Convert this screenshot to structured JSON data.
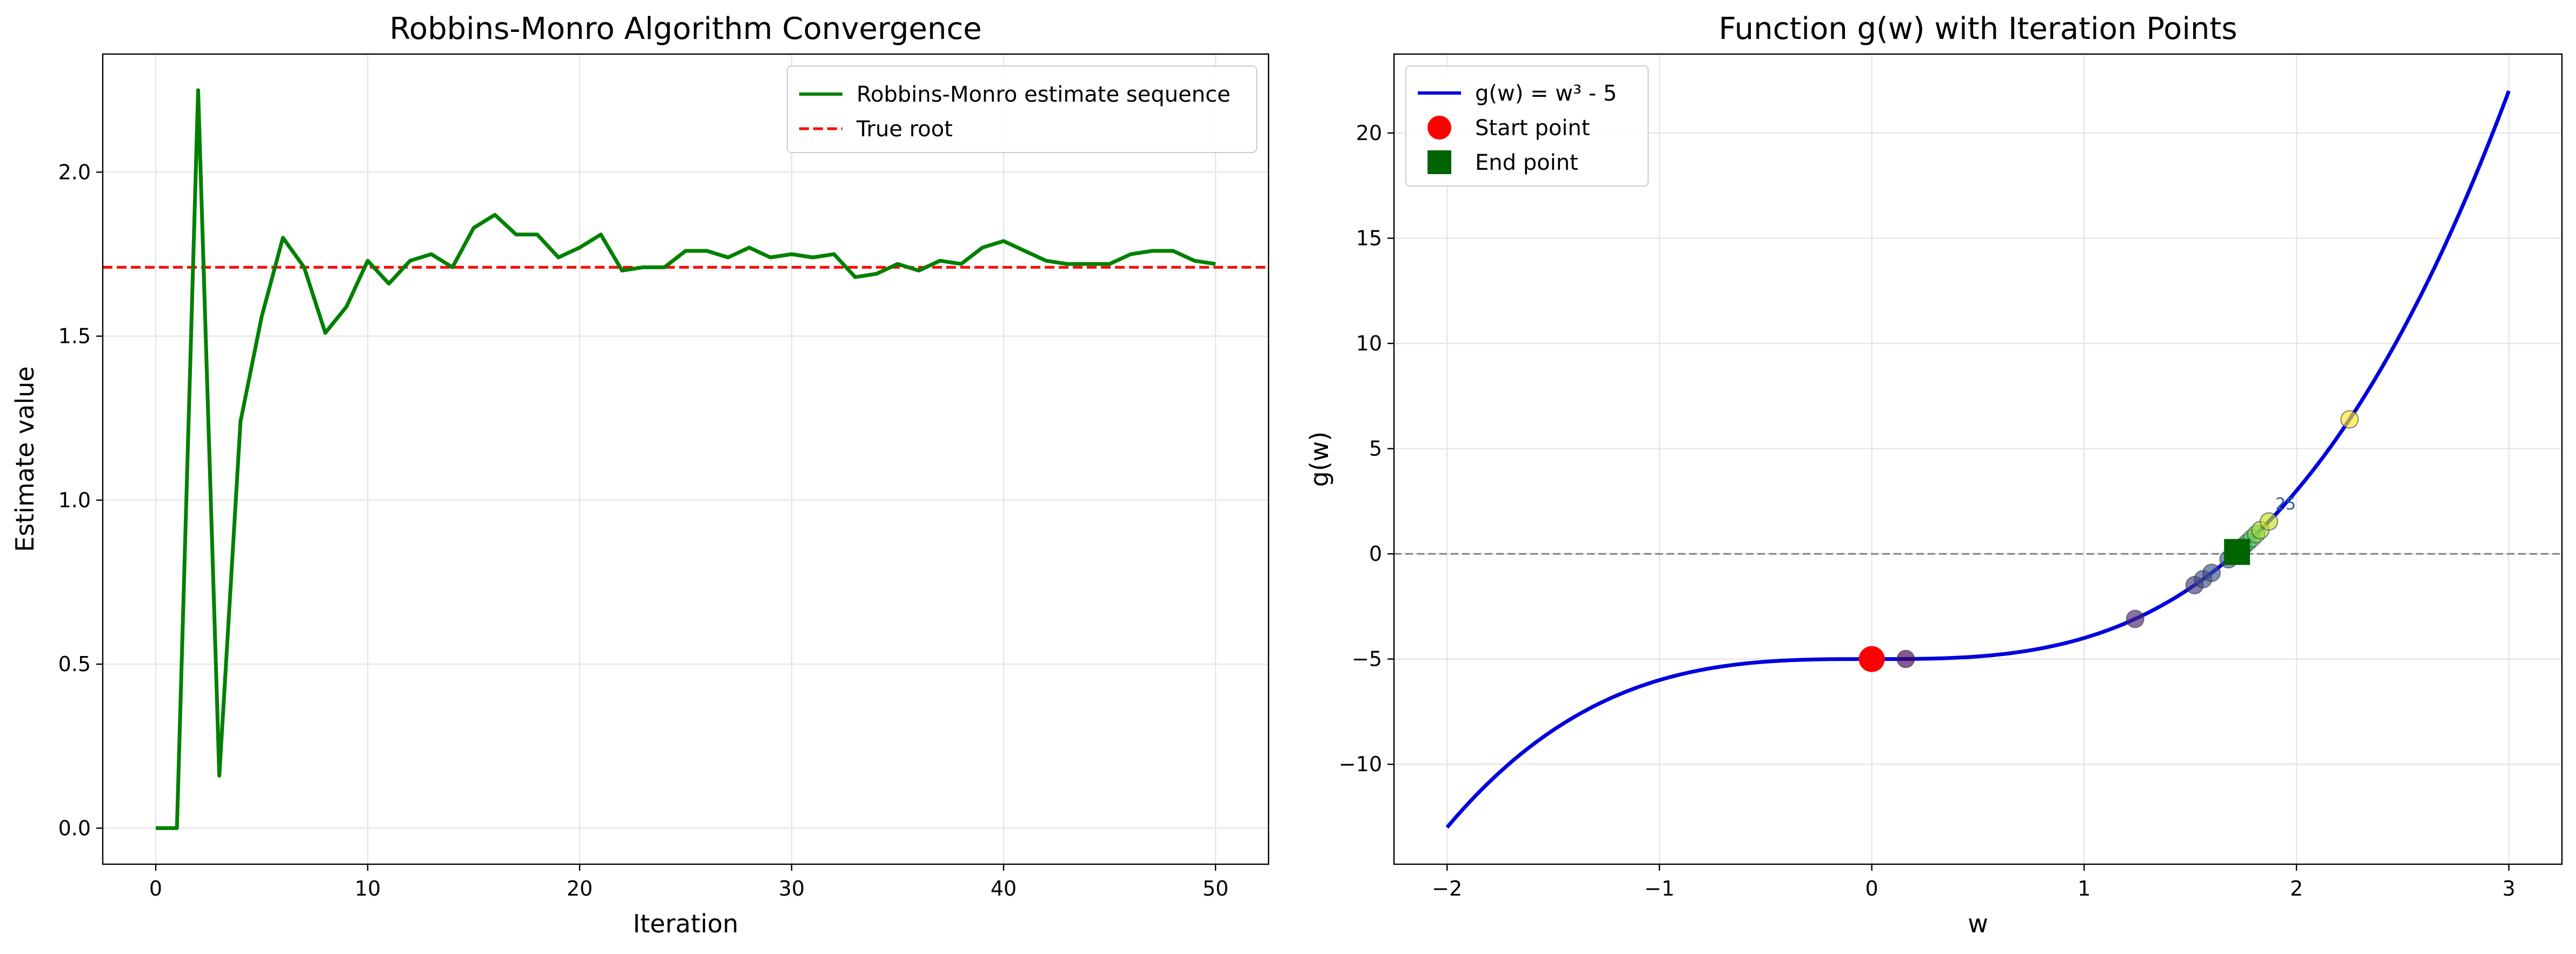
{
  "chart_data": [
    {
      "type": "line",
      "title": "Robbins-Monro Algorithm Convergence",
      "xlabel": "Iteration",
      "ylabel": "Estimate value",
      "xlim": [
        -2.5,
        52.5
      ],
      "ylim": [
        -0.11,
        2.36
      ],
      "xticks": [
        0,
        10,
        20,
        30,
        40,
        50
      ],
      "yticks": [
        0.0,
        0.5,
        1.0,
        1.5,
        2.0
      ],
      "xtick_labels": [
        "0",
        "10",
        "20",
        "30",
        "40",
        "50"
      ],
      "ytick_labels": [
        "0.0",
        "0.5",
        "1.0",
        "1.5",
        "2.0"
      ],
      "grid": true,
      "legend_position": "top-right",
      "series": [
        {
          "name": "Robbins-Monro estimate sequence",
          "color": "#008000",
          "style": "solid",
          "x": [
            0,
            1,
            2,
            3,
            4,
            5,
            6,
            7,
            8,
            9,
            10,
            11,
            12,
            13,
            14,
            15,
            16,
            17,
            18,
            19,
            20,
            21,
            22,
            23,
            24,
            25,
            26,
            27,
            28,
            29,
            30,
            31,
            32,
            33,
            34,
            35,
            36,
            37,
            38,
            39,
            40,
            41,
            42,
            43,
            44,
            45,
            46,
            47,
            48,
            49,
            50
          ],
          "y": [
            0.0,
            0.0,
            2.25,
            0.16,
            1.24,
            1.56,
            1.8,
            1.71,
            1.51,
            1.59,
            1.73,
            1.66,
            1.73,
            1.75,
            1.71,
            1.83,
            1.87,
            1.81,
            1.81,
            1.74,
            1.77,
            1.81,
            1.7,
            1.71,
            1.71,
            1.76,
            1.76,
            1.74,
            1.77,
            1.74,
            1.75,
            1.74,
            1.75,
            1.68,
            1.69,
            1.72,
            1.7,
            1.73,
            1.72,
            1.77,
            1.79,
            1.76,
            1.73,
            1.72,
            1.72,
            1.72,
            1.75,
            1.76,
            1.76,
            1.73,
            1.72
          ]
        },
        {
          "name": "True root",
          "color": "#ff0000",
          "style": "dashed",
          "y_const": 1.71
        }
      ]
    },
    {
      "type": "line",
      "title": "Function g(w) with Iteration Points",
      "xlabel": "w",
      "ylabel": "g(w)",
      "xlim": [
        -2.25,
        3.25
      ],
      "ylim": [
        -14.75,
        23.75
      ],
      "xticks": [
        -2,
        -1,
        0,
        1,
        2,
        3
      ],
      "yticks": [
        -10,
        -5,
        0,
        5,
        10,
        15,
        20
      ],
      "xtick_labels": [
        "−2",
        "−1",
        "0",
        "1",
        "2",
        "3"
      ],
      "ytick_labels": [
        "−10",
        "−5",
        "0",
        "5",
        "10",
        "15",
        "20"
      ],
      "grid": true,
      "legend_position": "top-left",
      "curve": {
        "name": "g(w) = w³ - 5",
        "color": "#0000dd",
        "x_range": [
          -2,
          3
        ]
      },
      "zero_line": {
        "y": 0,
        "color": "#808080",
        "style": "dashed"
      },
      "iteration_points": {
        "w": [
          0.16,
          1.24,
          1.52,
          1.56,
          1.6,
          1.68,
          1.71,
          1.73,
          1.75,
          1.77,
          1.79,
          1.81,
          1.83,
          1.87,
          2.25
        ],
        "colors": [
          "#440154",
          "#482475",
          "#443983",
          "#404c8e",
          "#3b528b",
          "#33638d",
          "#2a788e",
          "#21918c",
          "#22a884",
          "#35b779",
          "#5ec962",
          "#7ad151",
          "#a0da39",
          "#c8e020",
          "#fde725"
        ]
      },
      "start_point": {
        "name": "Start point",
        "w": 0.0,
        "g": -5.0,
        "color": "#ff0000",
        "marker": "circle"
      },
      "end_point": {
        "name": "End point",
        "w": 1.72,
        "g": 0.09,
        "color": "#006400",
        "marker": "square"
      },
      "annotation": {
        "text": "25",
        "w": 1.88,
        "g": 1.75
      }
    }
  ]
}
